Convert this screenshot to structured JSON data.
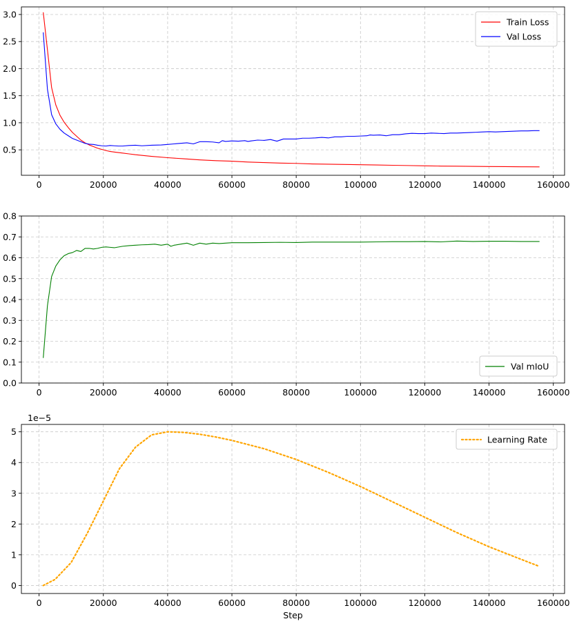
{
  "chart_data": [
    {
      "type": "line",
      "title": "",
      "xlabel": "",
      "ylabel": "",
      "xlim": [
        -5500,
        163500
      ],
      "ylim": [
        0.03,
        3.14
      ],
      "xticks": [
        0,
        20000,
        40000,
        60000,
        80000,
        100000,
        120000,
        140000,
        160000
      ],
      "xtick_labels": [
        "0",
        "20000",
        "40000",
        "60000",
        "80000",
        "100000",
        "120000",
        "140000",
        "160000"
      ],
      "yticks": [
        0.5,
        1.0,
        1.5,
        2.0,
        2.5,
        3.0
      ],
      "ytick_labels": [
        "0.5",
        "1.0",
        "1.5",
        "2.0",
        "2.5",
        "3.0"
      ],
      "grid": true,
      "legend_position": "upper right",
      "series": [
        {
          "name": "Train Loss",
          "color": "#ff0000",
          "style": "solid",
          "x": [
            1300,
            2600,
            3900,
            5200,
            6500,
            7800,
            9100,
            10400,
            11700,
            13000,
            14300,
            15600,
            16900,
            18200,
            20000,
            22000,
            24000,
            26000,
            28000,
            30000,
            35000,
            40000,
            45000,
            50000,
            55000,
            60000,
            65000,
            70000,
            75000,
            80000,
            85000,
            90000,
            95000,
            100000,
            105000,
            110000,
            115000,
            120000,
            125000,
            130000,
            135000,
            140000,
            145000,
            150000,
            155700
          ],
          "values": [
            3.04,
            2.35,
            1.65,
            1.33,
            1.14,
            1.01,
            0.91,
            0.82,
            0.75,
            0.68,
            0.63,
            0.59,
            0.56,
            0.53,
            0.5,
            0.47,
            0.455,
            0.44,
            0.425,
            0.41,
            0.38,
            0.355,
            0.335,
            0.315,
            0.3,
            0.29,
            0.275,
            0.265,
            0.255,
            0.25,
            0.24,
            0.235,
            0.23,
            0.225,
            0.22,
            0.215,
            0.21,
            0.205,
            0.2,
            0.198,
            0.195,
            0.192,
            0.19,
            0.187,
            0.185
          ]
        },
        {
          "name": "Val Loss",
          "color": "#0000ff",
          "style": "solid",
          "x": [
            1300,
            2600,
            3900,
            5200,
            6500,
            7800,
            9100,
            10400,
            11700,
            13000,
            14300,
            15600,
            16900,
            18200,
            19500,
            20800,
            22100,
            23400,
            24700,
            26000,
            28000,
            30000,
            32000,
            35000,
            38000,
            40000,
            42000,
            44000,
            46000,
            48000,
            50000,
            52000,
            54000,
            56000,
            57000,
            58000,
            60000,
            62000,
            64000,
            65000,
            66000,
            68000,
            70000,
            72000,
            74000,
            76000,
            78000,
            80000,
            82000,
            84000,
            86000,
            88000,
            90000,
            92000,
            94000,
            96000,
            98000,
            100000,
            102000,
            103000,
            104000,
            106000,
            108000,
            110000,
            112000,
            114000,
            116000,
            118000,
            120000,
            122000,
            124000,
            126000,
            128000,
            130000,
            132000,
            134000,
            136000,
            138000,
            140000,
            142000,
            144000,
            146000,
            148000,
            150000,
            152000,
            154000,
            155700
          ],
          "values": [
            2.67,
            1.62,
            1.15,
            0.98,
            0.88,
            0.81,
            0.76,
            0.71,
            0.68,
            0.65,
            0.62,
            0.605,
            0.6,
            0.585,
            0.575,
            0.57,
            0.58,
            0.575,
            0.57,
            0.57,
            0.58,
            0.585,
            0.575,
            0.585,
            0.59,
            0.6,
            0.61,
            0.62,
            0.63,
            0.61,
            0.65,
            0.65,
            0.645,
            0.63,
            0.67,
            0.655,
            0.665,
            0.66,
            0.67,
            0.655,
            0.665,
            0.68,
            0.675,
            0.69,
            0.66,
            0.7,
            0.7,
            0.7,
            0.715,
            0.715,
            0.72,
            0.73,
            0.72,
            0.74,
            0.74,
            0.75,
            0.75,
            0.755,
            0.76,
            0.775,
            0.77,
            0.775,
            0.76,
            0.78,
            0.78,
            0.795,
            0.805,
            0.8,
            0.8,
            0.81,
            0.805,
            0.8,
            0.81,
            0.81,
            0.815,
            0.82,
            0.825,
            0.83,
            0.835,
            0.83,
            0.835,
            0.84,
            0.845,
            0.85,
            0.85,
            0.855,
            0.855
          ]
        }
      ]
    },
    {
      "type": "line",
      "title": "",
      "xlabel": "",
      "ylabel": "",
      "xlim": [
        -5500,
        163500
      ],
      "ylim": [
        0.0,
        0.8
      ],
      "xticks": [
        0,
        20000,
        40000,
        60000,
        80000,
        100000,
        120000,
        140000,
        160000
      ],
      "xtick_labels": [
        "0",
        "20000",
        "40000",
        "60000",
        "80000",
        "100000",
        "120000",
        "140000",
        "160000"
      ],
      "yticks": [
        0.0,
        0.1,
        0.2,
        0.3,
        0.4,
        0.5,
        0.6,
        0.7,
        0.8
      ],
      "ytick_labels": [
        "0.0",
        "0.1",
        "0.2",
        "0.3",
        "0.4",
        "0.5",
        "0.6",
        "0.7",
        "0.8"
      ],
      "grid": true,
      "legend_position": "lower right",
      "series": [
        {
          "name": "Val mIoU",
          "color": "#008000",
          "style": "solid",
          "x": [
            1300,
            2600,
            3900,
            5200,
            6500,
            7800,
            9100,
            10400,
            11700,
            13000,
            14300,
            15600,
            16900,
            18200,
            19500,
            20800,
            22100,
            23400,
            26000,
            28000,
            30000,
            32000,
            34000,
            36000,
            38000,
            40000,
            41000,
            42000,
            44000,
            46000,
            48000,
            50000,
            52000,
            54000,
            56000,
            58000,
            60000,
            65000,
            70000,
            75000,
            80000,
            85000,
            90000,
            95000,
            100000,
            105000,
            110000,
            115000,
            120000,
            125000,
            130000,
            135000,
            140000,
            145000,
            150000,
            155700
          ],
          "values": [
            0.12,
            0.37,
            0.51,
            0.56,
            0.59,
            0.61,
            0.62,
            0.625,
            0.635,
            0.63,
            0.645,
            0.645,
            0.642,
            0.645,
            0.65,
            0.652,
            0.65,
            0.648,
            0.655,
            0.658,
            0.66,
            0.662,
            0.663,
            0.665,
            0.66,
            0.665,
            0.655,
            0.66,
            0.665,
            0.67,
            0.66,
            0.67,
            0.665,
            0.67,
            0.668,
            0.67,
            0.672,
            0.672,
            0.673,
            0.674,
            0.673,
            0.675,
            0.675,
            0.675,
            0.675,
            0.676,
            0.677,
            0.677,
            0.678,
            0.676,
            0.68,
            0.678,
            0.679,
            0.679,
            0.678,
            0.678
          ]
        }
      ]
    },
    {
      "type": "line",
      "title": "",
      "xlabel": "Step",
      "ylabel": "",
      "offset_text": "1e−5",
      "xlim": [
        -5500,
        163500
      ],
      "ylim": [
        -0.26,
        5.24
      ],
      "xticks": [
        0,
        20000,
        40000,
        60000,
        80000,
        100000,
        120000,
        140000,
        160000
      ],
      "xtick_labels": [
        "0",
        "20000",
        "40000",
        "60000",
        "80000",
        "100000",
        "120000",
        "140000",
        "160000"
      ],
      "yticks": [
        0,
        1,
        2,
        3,
        4,
        5
      ],
      "ytick_labels": [
        "0",
        "1",
        "2",
        "3",
        "4",
        "5"
      ],
      "grid": true,
      "legend_position": "upper right",
      "series": [
        {
          "name": "Learning Rate",
          "color": "#ffa500",
          "style": "dotted",
          "x": [
            1300,
            5000,
            10000,
            15000,
            20000,
            25000,
            30000,
            35000,
            40000,
            45000,
            50000,
            55000,
            60000,
            70000,
            80000,
            90000,
            100000,
            110000,
            120000,
            130000,
            140000,
            150000,
            155700
          ],
          "values": [
            0.0,
            0.2,
            0.75,
            1.7,
            2.75,
            3.8,
            4.5,
            4.9,
            5.0,
            4.98,
            4.92,
            4.83,
            4.72,
            4.45,
            4.1,
            3.68,
            3.22,
            2.72,
            2.22,
            1.72,
            1.26,
            0.85,
            0.62
          ]
        }
      ]
    }
  ]
}
